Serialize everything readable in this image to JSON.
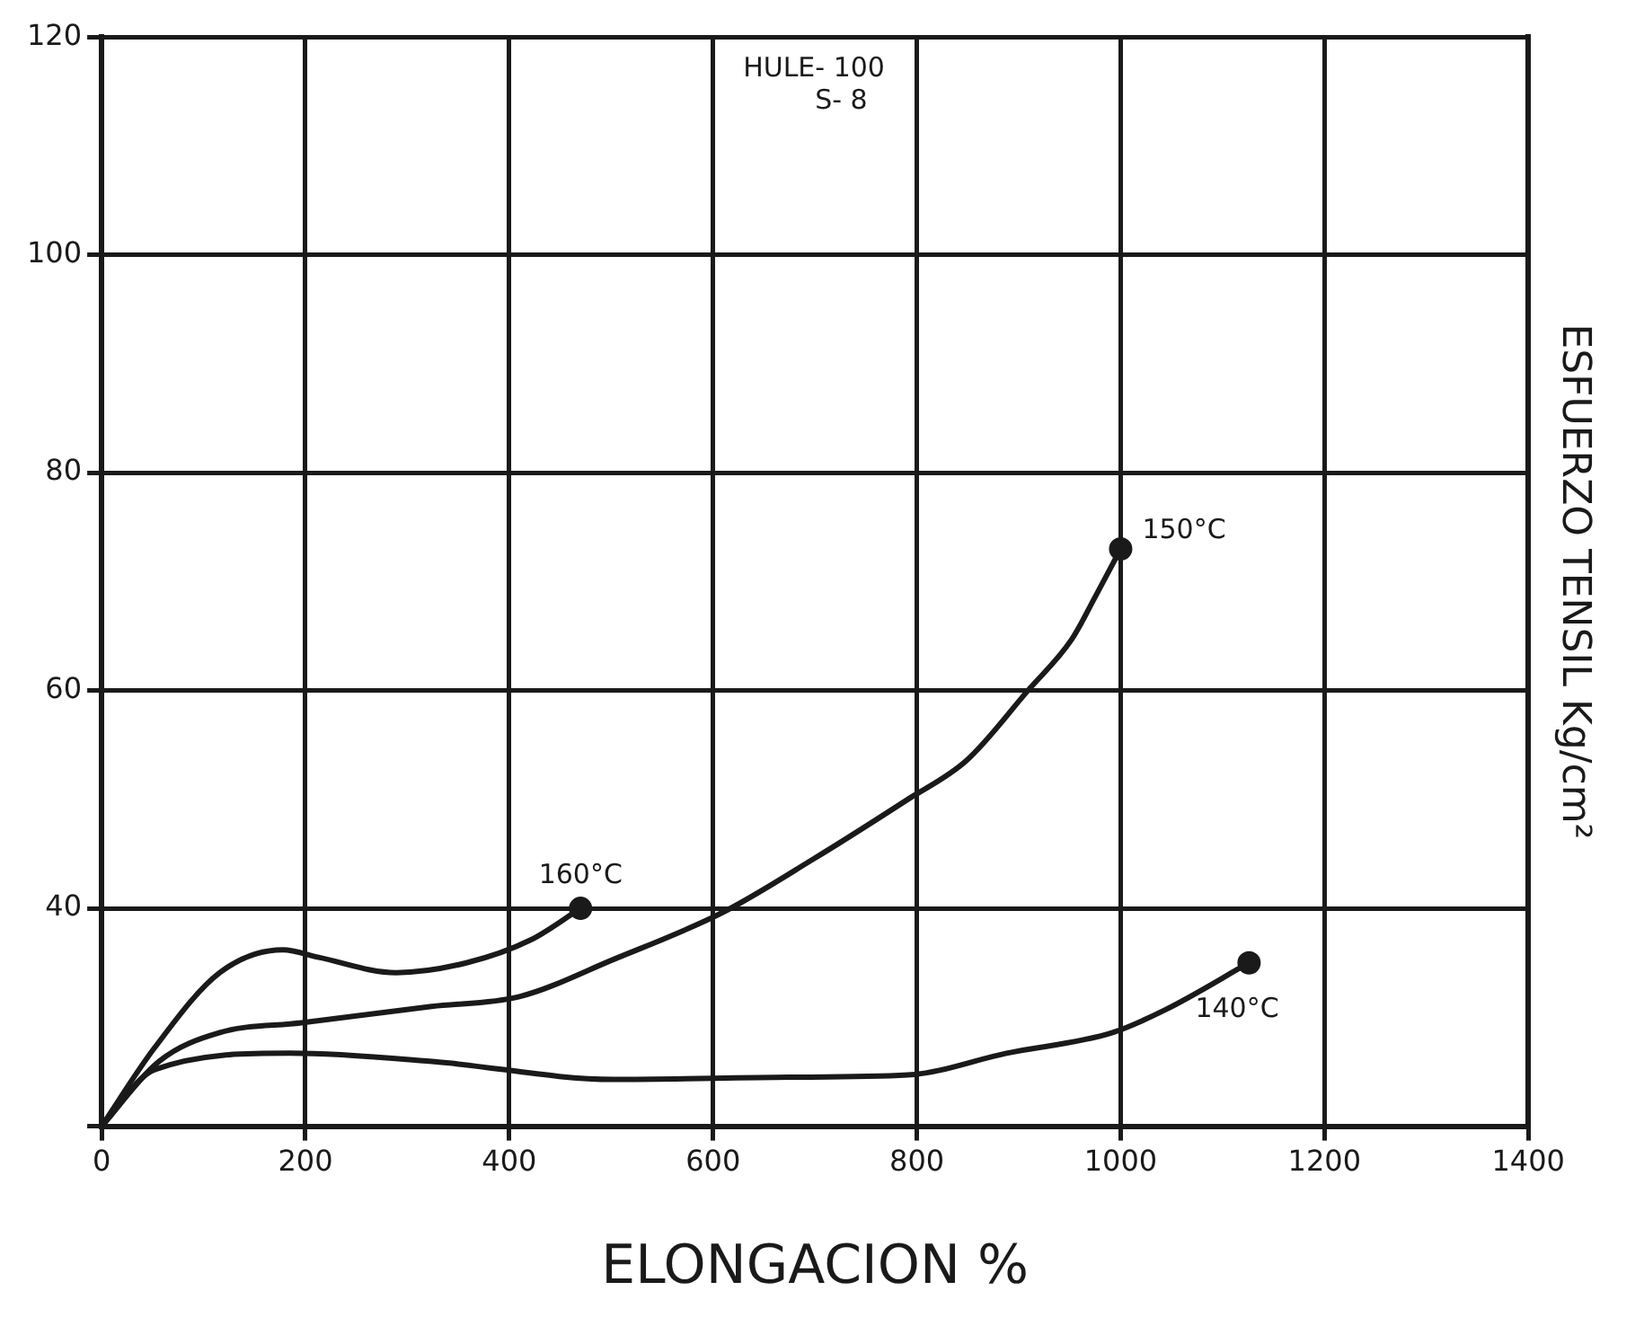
{
  "chart_data": {
    "type": "line",
    "xlabel": "ELONGACION %",
    "ylabel": "ESFUERZO TENSIL Kg/cm²",
    "xlim": [
      0,
      1400
    ],
    "xticks": [
      {
        "value": 0,
        "label": "0"
      },
      200,
      400,
      600,
      800,
      1000,
      1200,
      1400
    ],
    "ylim": [
      20,
      120
    ],
    "yticks": [
      {
        "value": 20,
        "label": null
      },
      40,
      60,
      80,
      100,
      120
    ],
    "grid": true,
    "annotations": [
      "HULE- 100",
      "S- 8"
    ],
    "series": [
      {
        "name": "160°C",
        "color": "#1a1a1a",
        "x": [
          0,
          52,
          116,
          178,
          213,
          289,
          358,
          421,
          470
        ],
        "values": [
          20,
          27.2,
          34.1,
          36.2,
          35.5,
          34.1,
          35,
          37.1,
          40
        ]
      },
      {
        "name": "150°C",
        "color": "#1a1a1a",
        "x": [
          0,
          57,
          116,
          196,
          324,
          410,
          502,
          611,
          698,
          791,
          849,
          909,
          952,
          975,
          1000
        ],
        "values": [
          20,
          26,
          28.6,
          29.5,
          31,
          31.9,
          35.3,
          39.7,
          44.5,
          50,
          53.6,
          60,
          64.7,
          68.6,
          73
        ]
      },
      {
        "name": "140°C",
        "color": "#1a1a1a",
        "x": [
          0,
          52,
          185,
          329,
          502,
          675,
          791,
          888,
          992,
          1044,
          1126
        ],
        "values": [
          20,
          25.2,
          26.7,
          25.9,
          24.3,
          24.5,
          24.7,
          26.7,
          28.6,
          30.7,
          35
        ]
      }
    ]
  }
}
